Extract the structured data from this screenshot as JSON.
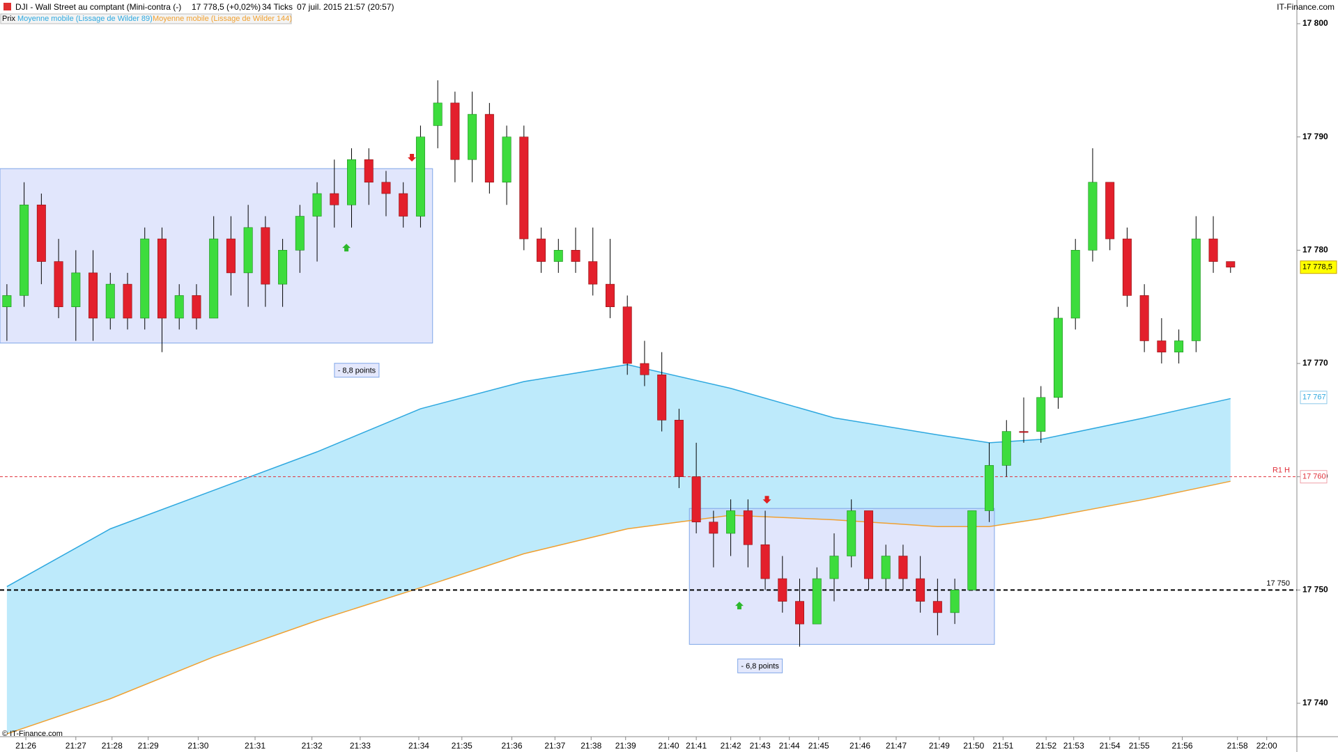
{
  "chart_data": {
    "type": "candlestick",
    "title": "DJI - Wall Street au comptant (Mini-contra (-)",
    "quote": "17 778,5 (+0,02%)",
    "ticks_label": "34 Ticks",
    "date": "07 juil. 2015 21:57 (20:57)",
    "brand": "IT-Finance.com",
    "footer": "© IT-Finance.com",
    "legend": [
      "Prix",
      "Moyenne mobile (Lissage de Wilder 89)",
      "Moyenne mobile (Lissage de Wilder 144)"
    ],
    "up_color": "#3ddc3d",
    "down_color": "#e3202c",
    "ylim": [
      17740,
      17800
    ],
    "yticks": [
      {
        "value": 17740,
        "label": "17 740"
      },
      {
        "value": 17750,
        "label": "17 750"
      },
      {
        "value": 17760,
        "label": "17 760"
      },
      {
        "value": 17770,
        "label": "17 770"
      },
      {
        "value": 17780,
        "label": "17 780"
      },
      {
        "value": 17790,
        "label": "17 790"
      },
      {
        "value": 17800,
        "label": "17 800"
      }
    ],
    "xlim": [
      -0.4,
      74.85
    ],
    "xticks": [
      {
        "value": 1.1,
        "label": "21:26"
      },
      {
        "value": 4.0,
        "label": "21:27"
      },
      {
        "value": 6.1,
        "label": "21:28"
      },
      {
        "value": 8.2,
        "label": "21:29"
      },
      {
        "value": 11.1,
        "label": "21:30"
      },
      {
        "value": 14.4,
        "label": "21:31"
      },
      {
        "value": 17.7,
        "label": "21:32"
      },
      {
        "value": 20.5,
        "label": "21:33"
      },
      {
        "value": 23.9,
        "label": "21:34"
      },
      {
        "value": 26.4,
        "label": "21:35"
      },
      {
        "value": 29.3,
        "label": "21:36"
      },
      {
        "value": 31.8,
        "label": "21:37"
      },
      {
        "value": 33.9,
        "label": "21:38"
      },
      {
        "value": 35.9,
        "label": "21:39"
      },
      {
        "value": 38.4,
        "label": "21:40"
      },
      {
        "value": 40.0,
        "label": "21:41"
      },
      {
        "value": 42.0,
        "label": "21:42"
      },
      {
        "value": 43.7,
        "label": "21:43"
      },
      {
        "value": 45.4,
        "label": "21:44"
      },
      {
        "value": 47.1,
        "label": "21:45"
      },
      {
        "value": 49.5,
        "label": "21:46"
      },
      {
        "value": 51.6,
        "label": "21:47"
      },
      {
        "value": 54.1,
        "label": "21:49"
      },
      {
        "value": 56.1,
        "label": "21:50"
      },
      {
        "value": 57.8,
        "label": "21:51"
      },
      {
        "value": 60.3,
        "label": "21:52"
      },
      {
        "value": 61.9,
        "label": "21:53"
      },
      {
        "value": 64.0,
        "label": "21:54"
      },
      {
        "value": 65.7,
        "label": "21:55"
      },
      {
        "value": 68.2,
        "label": "21:56"
      },
      {
        "value": 71.4,
        "label": "21:58"
      },
      {
        "value": 73.1,
        "label": "22:00"
      }
    ],
    "candles": [
      [
        17775,
        17777,
        17772,
        17776
      ],
      [
        17776,
        17786,
        17775,
        17784
      ],
      [
        17784,
        17785,
        17777,
        17779
      ],
      [
        17779,
        17781,
        17774,
        17775
      ],
      [
        17775,
        17780,
        17772,
        17778
      ],
      [
        17778,
        17780,
        17772,
        17774
      ],
      [
        17774,
        17778,
        17773,
        17777
      ],
      [
        17777,
        17778,
        17773,
        17774
      ],
      [
        17774,
        17782,
        17773,
        17781
      ],
      [
        17781,
        17782,
        17771,
        17774
      ],
      [
        17774,
        17777,
        17773,
        17776
      ],
      [
        17776,
        17777,
        17773,
        17774
      ],
      [
        17774,
        17783,
        17774,
        17781
      ],
      [
        17781,
        17783,
        17776,
        17778
      ],
      [
        17778,
        17784,
        17775,
        17782
      ],
      [
        17782,
        17783,
        17775,
        17777
      ],
      [
        17777,
        17781,
        17775,
        17780
      ],
      [
        17780,
        17784,
        17778,
        17783
      ],
      [
        17783,
        17786,
        17779,
        17785
      ],
      [
        17785,
        17788,
        17782,
        17784
      ],
      [
        17784,
        17789,
        17782,
        17788
      ],
      [
        17788,
        17789,
        17784,
        17786
      ],
      [
        17786,
        17787,
        17783,
        17785
      ],
      [
        17785,
        17786,
        17782,
        17783
      ],
      [
        17783,
        17791,
        17782,
        17790
      ],
      [
        17791,
        17795,
        17789,
        17793
      ],
      [
        17793,
        17794,
        17786,
        17788
      ],
      [
        17788,
        17794,
        17786,
        17792
      ],
      [
        17792,
        17793,
        17785,
        17786
      ],
      [
        17786,
        17791,
        17784,
        17790
      ],
      [
        17790,
        17791,
        17780,
        17781
      ],
      [
        17781,
        17782,
        17778,
        17779
      ],
      [
        17779,
        17781,
        17778,
        17780
      ],
      [
        17780,
        17782,
        17778,
        17779
      ],
      [
        17779,
        17782,
        17776,
        17777
      ],
      [
        17777,
        17781,
        17774,
        17775
      ],
      [
        17775,
        17776,
        17769,
        17770
      ],
      [
        17770,
        17772,
        17768,
        17769
      ],
      [
        17769,
        17771,
        17764,
        17765
      ],
      [
        17765,
        17766,
        17759,
        17760
      ],
      [
        17760,
        17763,
        17755,
        17756
      ],
      [
        17756,
        17757,
        17752,
        17755
      ],
      [
        17755,
        17758,
        17753,
        17757
      ],
      [
        17757,
        17758,
        17752,
        17754
      ],
      [
        17754,
        17757,
        17750,
        17751
      ],
      [
        17751,
        17753,
        17748,
        17749
      ],
      [
        17749,
        17751,
        17745,
        17747
      ],
      [
        17747,
        17752,
        17747,
        17751
      ],
      [
        17751,
        17755,
        17749,
        17753
      ],
      [
        17753,
        17758,
        17752,
        17757
      ],
      [
        17757,
        17757,
        17750,
        17751
      ],
      [
        17751,
        17754,
        17750,
        17753
      ],
      [
        17753,
        17754,
        17750,
        17751
      ],
      [
        17751,
        17753,
        17748,
        17749
      ],
      [
        17749,
        17751,
        17746,
        17748
      ],
      [
        17748,
        17751,
        17747,
        17750
      ],
      [
        17750,
        17757,
        17750,
        17757
      ],
      [
        17757,
        17763,
        17756,
        17761
      ],
      [
        17761,
        17765,
        17760,
        17764
      ],
      [
        17764,
        17767,
        17763,
        17764
      ],
      [
        17764,
        17768,
        17763,
        17767
      ],
      [
        17767,
        17775,
        17766,
        17774
      ],
      [
        17774,
        17781,
        17773,
        17780
      ],
      [
        17780,
        17789,
        17779,
        17786
      ],
      [
        17786,
        17786,
        17780,
        17781
      ],
      [
        17781,
        17782,
        17775,
        17776
      ],
      [
        17776,
        17777,
        17771,
        17772
      ],
      [
        17772,
        17774,
        17770,
        17771
      ],
      [
        17771,
        17773,
        17770,
        17772
      ],
      [
        17772,
        17783,
        17771,
        17781
      ],
      [
        17781,
        17783,
        17778,
        17779
      ],
      [
        17779,
        17779,
        17778,
        17778.5
      ]
    ],
    "series": [
      {
        "name": "Moyenne mobile (Lissage de Wilder 89)",
        "color": "#2ea8df",
        "x": [
          0,
          6,
          12,
          18,
          24,
          30,
          36,
          42,
          48,
          54,
          57,
          60,
          66,
          71
        ],
        "values": [
          17750.3,
          17755.4,
          17758.8,
          17762.2,
          17766,
          17768.4,
          17769.9,
          17767.8,
          17765.2,
          17763.7,
          17763,
          17763.3,
          17765.2,
          17766.9
        ]
      },
      {
        "name": "Moyenne mobile (Lissage de Wilder 144)",
        "color": "#f0a030",
        "x": [
          0,
          6,
          12,
          18,
          24,
          30,
          36,
          42,
          48,
          54,
          57,
          60,
          66,
          71
        ],
        "values": [
          17737.3,
          17740.4,
          17744.1,
          17747.3,
          17750.2,
          17753.2,
          17755.4,
          17756.6,
          17756.2,
          17755.6,
          17755.6,
          17756.3,
          17758,
          17759.6
        ]
      }
    ],
    "band_color": "#bdeafb",
    "boxes": [
      {
        "from": -0.4,
        "to": 24.7,
        "top": 17787.2,
        "bottom": 17771.8,
        "label": "- 8,8 points",
        "label_at": 20.3,
        "label_price": 17769.4
      },
      {
        "from": 39.6,
        "to": 57.3,
        "top": 17757.2,
        "bottom": 17745.2,
        "label": "- 6,8 points",
        "label_at": 43.7,
        "label_price": 17743.3
      }
    ],
    "arrows": [
      {
        "dir": "up",
        "at": 19.7,
        "price": 17780.2
      },
      {
        "dir": "down",
        "at": 23.5,
        "price": 17788.2
      },
      {
        "dir": "up",
        "at": 42.5,
        "price": 17748.6
      },
      {
        "dir": "down",
        "at": 44.1,
        "price": 17758
      }
    ],
    "levels": [
      {
        "value": 17760,
        "name": "R1 H",
        "tag": "17 760",
        "color": "#e0303a"
      },
      {
        "value": 17750,
        "name": "17 750",
        "color": "#000000"
      }
    ],
    "price_tag": {
      "value": 17778.5,
      "label": "17 778,5"
    },
    "ma_tag": {
      "value": 17767,
      "label": "17 767"
    }
  }
}
